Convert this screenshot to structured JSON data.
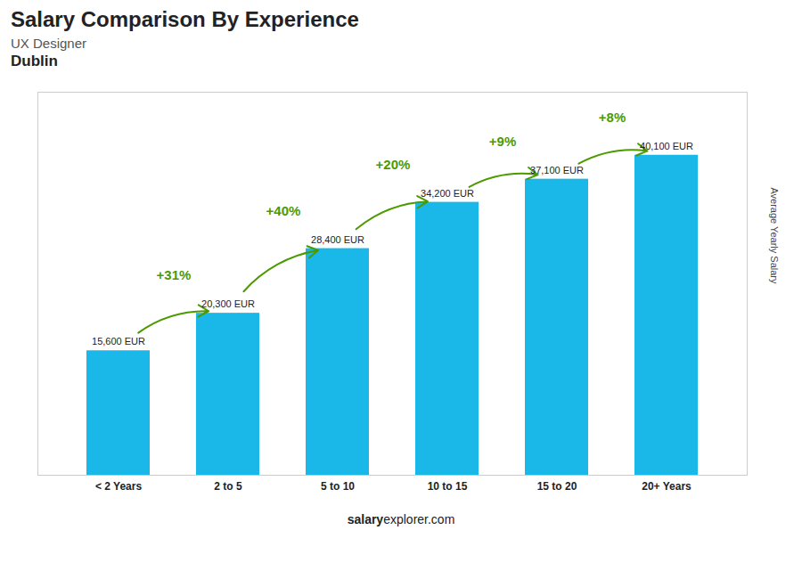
{
  "chart_data": {
    "type": "bar",
    "title": "Salary Comparison By Experience",
    "subtitle": "UX Designer",
    "city": "Dublin",
    "ylabel": "Average Yearly Salary",
    "categories": [
      "< 2 Years",
      "2 to 5",
      "5 to 10",
      "10 to 15",
      "15 to 20",
      "20+ Years"
    ],
    "values": [
      15600,
      20300,
      28400,
      34200,
      37100,
      40100
    ],
    "value_labels": [
      "15,600 EUR",
      "20,300 EUR",
      "28,400 EUR",
      "34,200 EUR",
      "37,100 EUR",
      "40,100 EUR"
    ],
    "data_labels": true,
    "color": "#1ab8e8",
    "ylim": [
      0,
      48000
    ],
    "tick_labels": "x",
    "grid": false,
    "annotations": [
      {
        "text": "+31%",
        "from": "< 2 Years",
        "to": "2 to 5",
        "color": "#4c9a00"
      },
      {
        "text": "+40%",
        "from": "2 to 5",
        "to": "5 to 10",
        "color": "#4c9a00"
      },
      {
        "text": "+20%",
        "from": "5 to 10",
        "to": "10 to 15",
        "color": "#4c9a00"
      },
      {
        "text": "+9%",
        "from": "10 to 15",
        "to": "15 to 20",
        "color": "#4c9a00"
      },
      {
        "text": "+8%",
        "from": "15 to 20",
        "to": "20+ Years",
        "color": "#4c9a00"
      }
    ],
    "caption": [
      "salary",
      "explorer.com"
    ]
  }
}
